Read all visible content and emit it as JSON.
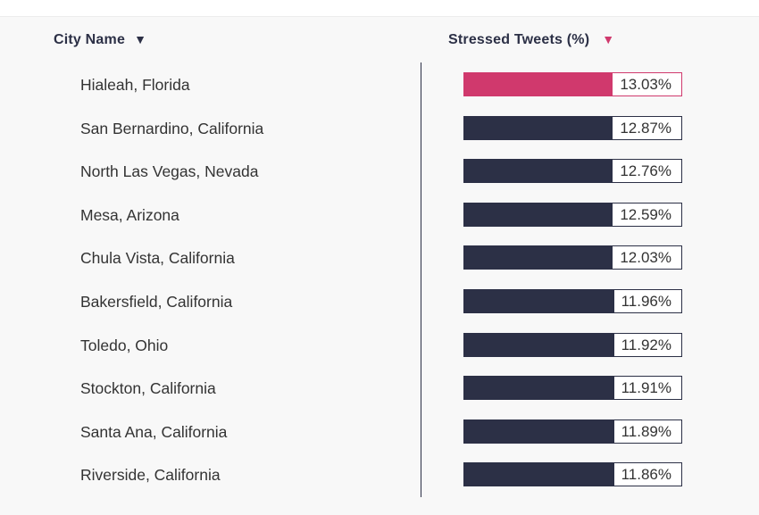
{
  "chart_data": {
    "type": "bar",
    "orientation": "horizontal",
    "columns": {
      "city_header": "City Name",
      "value_header": "Stressed Tweets (%)"
    },
    "categories": [
      "Hialeah, Florida",
      "San Bernardino, California",
      "North Las Vegas, Nevada",
      "Mesa, Arizona",
      "Chula Vista, California",
      "Bakersfield, California",
      "Toledo, Ohio",
      "Stockton, California",
      "Santa Ana, California",
      "Riverside, California"
    ],
    "values": [
      13.03,
      12.87,
      12.76,
      12.59,
      12.03,
      11.96,
      11.92,
      11.91,
      11.89,
      11.86
    ],
    "labels": [
      "13.03%",
      "12.87%",
      "12.76%",
      "12.59%",
      "12.03%",
      "11.96%",
      "11.92%",
      "11.91%",
      "11.89%",
      "11.86%"
    ],
    "highlight_index": 0,
    "sort": {
      "column": "value",
      "direction": "descending"
    },
    "colors": {
      "bar": "#2c3046",
      "highlight": "#d0396d",
      "text": "#333333"
    }
  }
}
